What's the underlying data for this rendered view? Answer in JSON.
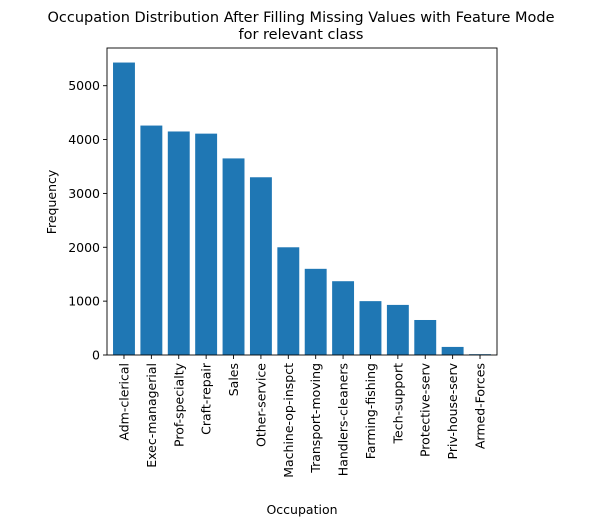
{
  "chart_data": {
    "type": "bar",
    "title_lines": [
      "Occupation Distribution After Filling Missing Values with Feature Mode",
      "for relevant class"
    ],
    "xlabel": "Occupation",
    "ylabel": "Frequency",
    "categories": [
      "Adm-clerical",
      "Exec-managerial",
      "Prof-specialty",
      "Craft-repair",
      "Sales",
      "Other-service",
      "Machine-op-inspct",
      "Transport-moving",
      "Handlers-cleaners",
      "Farming-fishing",
      "Tech-support",
      "Protective-serv",
      "Priv-house-serv",
      "Armed-Forces"
    ],
    "values": [
      5430,
      4260,
      4150,
      4110,
      3650,
      3300,
      2000,
      1600,
      1370,
      1000,
      930,
      650,
      150,
      15
    ],
    "ylim": [
      0,
      5700
    ],
    "yticks": [
      0,
      1000,
      2000,
      3000,
      4000,
      5000
    ],
    "ytick_labels": [
      "0",
      "1000",
      "2000",
      "3000",
      "4000",
      "5000"
    ],
    "bar_color": "#1f77b4",
    "grid": false,
    "legend": "none"
  }
}
